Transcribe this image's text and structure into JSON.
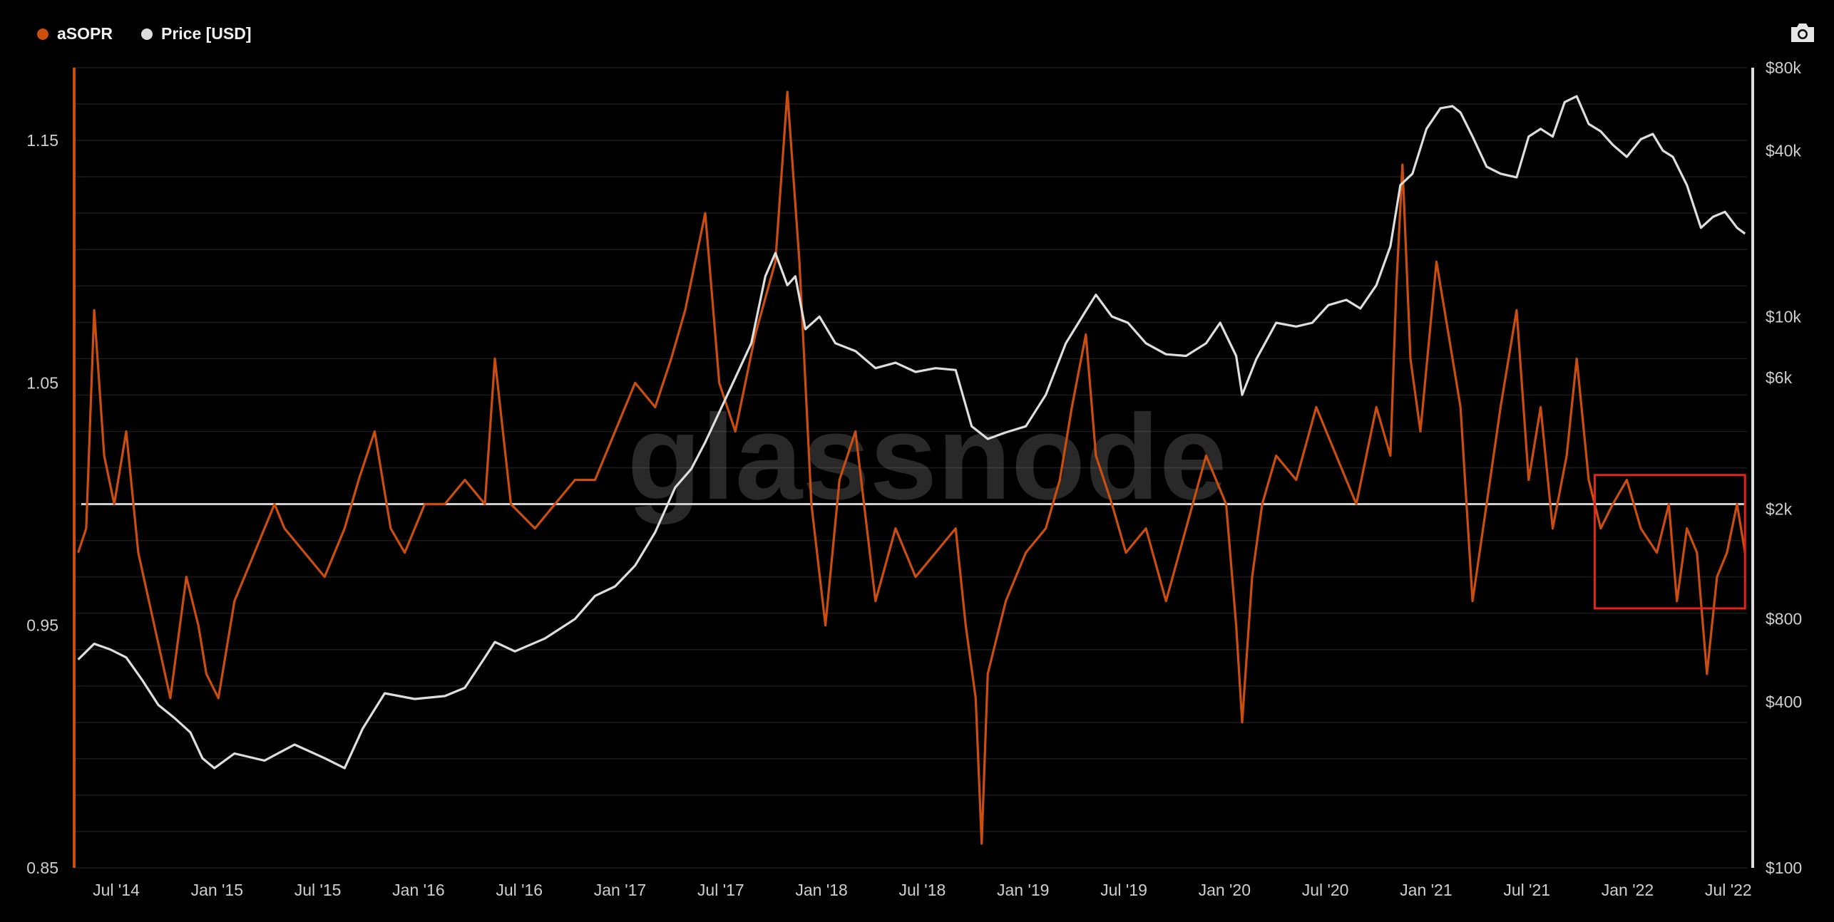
{
  "legend": {
    "series1_label": "aSOPR",
    "series2_label": "Price [USD]"
  },
  "colors": {
    "asopr": "#cc4e0f",
    "price": "#dedede",
    "baseline": "#cfcfcf",
    "highlight": "#e3231b",
    "grid": "#1c1c1c"
  },
  "watermark": "glassnode",
  "icons": {
    "camera": "camera-icon"
  },
  "chart_data": {
    "type": "line",
    "legend_position": "top-left",
    "grid": true,
    "x_ticks": [
      "Jul '14",
      "Jan '15",
      "Jul '15",
      "Jan '16",
      "Jul '16",
      "Jan '17",
      "Jul '17",
      "Jan '18",
      "Jul '18",
      "Jan '19",
      "Jul '19",
      "Jan '20",
      "Jul '20",
      "Jan '21",
      "Jul '21",
      "Jan '22",
      "Jul '22"
    ],
    "xlim": [
      2014.4,
      2022.75
    ],
    "y_left": {
      "ticks": [
        "1.15",
        "1.05",
        "0.95",
        "0.85"
      ],
      "tick_values": [
        1.15,
        1.05,
        0.95,
        0.85
      ],
      "ylim": [
        0.85,
        1.18
      ]
    },
    "y_right": {
      "scale": "log",
      "ticks": [
        "$80k",
        "$40k",
        "$10k",
        "$6k",
        "$2k",
        "$800",
        "$400",
        "$100"
      ],
      "tick_values": [
        80000,
        40000,
        10000,
        6000,
        2000,
        800,
        400,
        100
      ],
      "ylim": [
        100,
        80000
      ]
    },
    "baseline": 1.0,
    "highlight_box": {
      "x": [
        2021.99,
        2022.74
      ],
      "y": [
        0.957,
        1.012
      ]
    },
    "series": [
      {
        "name": "aSOPR",
        "axis": "left",
        "x": [
          2014.42,
          2014.46,
          2014.5,
          2014.55,
          2014.6,
          2014.66,
          2014.72,
          2014.8,
          2014.88,
          2014.96,
          2015.02,
          2015.06,
          2015.12,
          2015.2,
          2015.3,
          2015.4,
          2015.45,
          2015.55,
          2015.65,
          2015.75,
          2015.82,
          2015.9,
          2015.98,
          2016.05,
          2016.15,
          2016.25,
          2016.35,
          2016.45,
          2016.5,
          2016.58,
          2016.7,
          2016.8,
          2016.9,
          2017.0,
          2017.1,
          2017.2,
          2017.3,
          2017.38,
          2017.45,
          2017.5,
          2017.55,
          2017.62,
          2017.7,
          2017.8,
          2017.9,
          2017.96,
          2018.02,
          2018.08,
          2018.15,
          2018.22,
          2018.3,
          2018.4,
          2018.5,
          2018.6,
          2018.7,
          2018.8,
          2018.85,
          2018.9,
          2018.93,
          2018.96,
          2019.05,
          2019.15,
          2019.25,
          2019.32,
          2019.38,
          2019.45,
          2019.5,
          2019.58,
          2019.65,
          2019.75,
          2019.85,
          2019.95,
          2020.05,
          2020.15,
          2020.2,
          2020.23,
          2020.28,
          2020.33,
          2020.4,
          2020.5,
          2020.6,
          2020.7,
          2020.8,
          2020.9,
          2020.97,
          2021.0,
          2021.03,
          2021.07,
          2021.12,
          2021.2,
          2021.26,
          2021.32,
          2021.38,
          2021.45,
          2021.52,
          2021.6,
          2021.66,
          2021.72,
          2021.78,
          2021.85,
          2021.9,
          2021.96,
          2022.02,
          2022.08,
          2022.15,
          2022.22,
          2022.3,
          2022.36,
          2022.4,
          2022.45,
          2022.5,
          2022.55,
          2022.6,
          2022.65,
          2022.7,
          2022.74
        ],
        "y": [
          0.98,
          0.99,
          1.08,
          1.02,
          1.0,
          1.03,
          0.98,
          0.95,
          0.92,
          0.97,
          0.95,
          0.93,
          0.92,
          0.96,
          0.98,
          1.0,
          0.99,
          0.98,
          0.97,
          0.99,
          1.01,
          1.03,
          0.99,
          0.98,
          1.0,
          1.0,
          1.01,
          1.0,
          1.06,
          1.0,
          0.99,
          1.0,
          1.01,
          1.01,
          1.03,
          1.05,
          1.04,
          1.06,
          1.08,
          1.1,
          1.12,
          1.05,
          1.03,
          1.07,
          1.1,
          1.17,
          1.1,
          1.0,
          0.95,
          1.01,
          1.03,
          0.96,
          0.99,
          0.97,
          0.98,
          0.99,
          0.95,
          0.92,
          0.86,
          0.93,
          0.96,
          0.98,
          0.99,
          1.01,
          1.04,
          1.07,
          1.02,
          1.0,
          0.98,
          0.99,
          0.96,
          0.99,
          1.02,
          1.0,
          0.95,
          0.91,
          0.97,
          1.0,
          1.02,
          1.01,
          1.04,
          1.02,
          1.0,
          1.04,
          1.02,
          1.09,
          1.14,
          1.06,
          1.03,
          1.1,
          1.07,
          1.04,
          0.96,
          1.0,
          1.04,
          1.08,
          1.01,
          1.04,
          0.99,
          1.02,
          1.06,
          1.01,
          0.99,
          1.0,
          1.01,
          0.99,
          0.98,
          1.0,
          0.96,
          0.99,
          0.98,
          0.93,
          0.97,
          0.98,
          1.0,
          0.98
        ]
      },
      {
        "name": "Price [USD]",
        "axis": "right",
        "x": [
          2014.42,
          2014.5,
          2014.58,
          2014.66,
          2014.74,
          2014.82,
          2014.9,
          2014.98,
          2015.04,
          2015.1,
          2015.2,
          2015.35,
          2015.5,
          2015.65,
          2015.75,
          2015.84,
          2015.95,
          2016.1,
          2016.25,
          2016.35,
          2016.45,
          2016.5,
          2016.6,
          2016.75,
          2016.9,
          2017.0,
          2017.1,
          2017.2,
          2017.3,
          2017.4,
          2017.48,
          2017.55,
          2017.62,
          2017.7,
          2017.78,
          2017.85,
          2017.9,
          2017.96,
          2018.0,
          2018.05,
          2018.12,
          2018.2,
          2018.3,
          2018.4,
          2018.5,
          2018.6,
          2018.7,
          2018.8,
          2018.88,
          2018.96,
          2019.05,
          2019.15,
          2019.25,
          2019.35,
          2019.45,
          2019.5,
          2019.58,
          2019.66,
          2019.75,
          2019.85,
          2019.95,
          2020.05,
          2020.12,
          2020.2,
          2020.23,
          2020.3,
          2020.4,
          2020.5,
          2020.58,
          2020.66,
          2020.75,
          2020.82,
          2020.9,
          2020.97,
          2021.02,
          2021.08,
          2021.15,
          2021.22,
          2021.28,
          2021.32,
          2021.38,
          2021.45,
          2021.52,
          2021.6,
          2021.66,
          2021.72,
          2021.78,
          2021.84,
          2021.9,
          2021.96,
          2022.02,
          2022.08,
          2022.15,
          2022.22,
          2022.28,
          2022.33,
          2022.38,
          2022.45,
          2022.52,
          2022.58,
          2022.64,
          2022.7,
          2022.74
        ],
        "y": [
          570,
          650,
          620,
          580,
          480,
          390,
          350,
          310,
          250,
          230,
          260,
          245,
          280,
          250,
          230,
          320,
          430,
          410,
          420,
          450,
          580,
          660,
          610,
          680,
          800,
          970,
          1050,
          1250,
          1650,
          2400,
          2800,
          3500,
          4500,
          6000,
          8000,
          14000,
          17000,
          13000,
          14000,
          9000,
          10000,
          8000,
          7500,
          6500,
          6800,
          6300,
          6500,
          6400,
          4000,
          3600,
          3800,
          4000,
          5200,
          8000,
          10500,
          12000,
          10000,
          9500,
          8000,
          7300,
          7200,
          8000,
          9500,
          7200,
          5200,
          7000,
          9500,
          9200,
          9500,
          11000,
          11500,
          10700,
          13000,
          18000,
          30000,
          33000,
          48000,
          57000,
          58000,
          55000,
          45000,
          35000,
          33000,
          32000,
          45000,
          48000,
          45000,
          60000,
          63000,
          50000,
          47000,
          42000,
          38000,
          44000,
          46000,
          40000,
          38000,
          30000,
          21000,
          23000,
          24000,
          21000,
          20000
        ]
      }
    ]
  }
}
